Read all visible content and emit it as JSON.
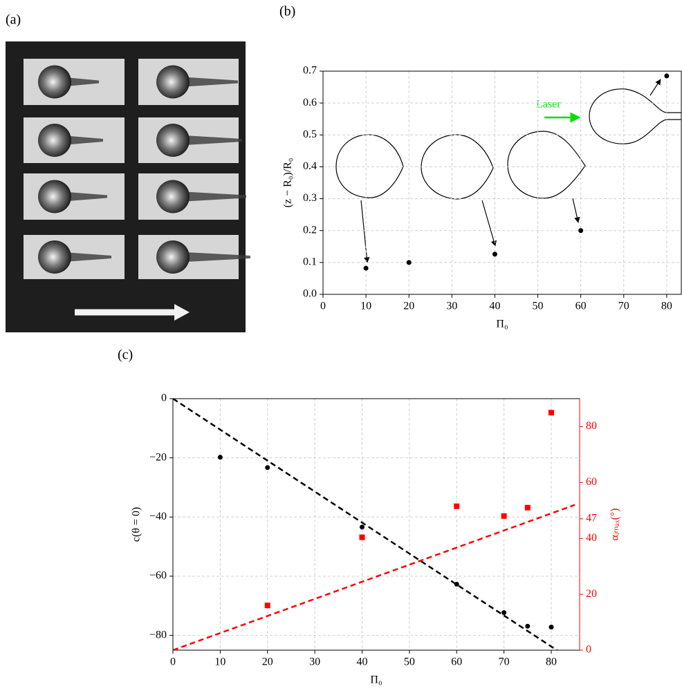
{
  "photo": {
    "label": "(a)"
  },
  "chart_data": [
    {
      "type": "scatter",
      "label": "(b)",
      "xlabel": "Π₀",
      "ylabel": "(z − R₀)/R₀",
      "annotation": "Laser",
      "annotation_color": "#00e000",
      "series": [
        {
          "color": "#000000",
          "marker": "circle",
          "x": [
            10,
            20,
            40,
            60,
            80
          ],
          "values": [
            0.082,
            0.1,
            0.126,
            0.2,
            0.685
          ]
        }
      ],
      "xlim": [
        0,
        83.4
      ],
      "xticks": [
        0,
        10,
        20,
        30,
        40,
        50,
        60,
        70,
        80
      ],
      "ylim": [
        0,
        0.7
      ],
      "yticks": [
        {
          "value": 0,
          "label": "0.0"
        },
        0.1,
        0.2,
        0.3,
        0.4,
        0.5,
        0.6,
        0.7
      ],
      "grid": true
    },
    {
      "type": "scatter",
      "label": "(c)",
      "xlabel": "Π₀",
      "ylabel": "c(θ = 0)",
      "y2label": "αᵢₘₐₓ(°)",
      "y2_color": "#ff0000",
      "series": [
        {
          "color": "#000000",
          "marker": "circle",
          "x": [
            10,
            20,
            40,
            60,
            70,
            75,
            80
          ],
          "values": [
            -19.8,
            -23.3,
            -43.4,
            -62.7,
            -72.3,
            -76.9,
            -77.2
          ]
        },
        {
          "color": "#ff0000",
          "marker": "square",
          "axis": "y2",
          "x": [
            20,
            40,
            60,
            70,
            75,
            80
          ],
          "values": [
            16,
            40.4,
            51.5,
            48,
            51,
            85
          ]
        },
        {
          "color": "#000000",
          "line": "dashed",
          "x": [
            0,
            85
          ],
          "values": [
            0,
            -89
          ]
        },
        {
          "color": "#ff0000",
          "line": "dashed",
          "axis": "y2",
          "x": [
            0,
            85
          ],
          "values": [
            0,
            52
          ]
        }
      ],
      "xlim": [
        0,
        86
      ],
      "xticks": [
        0,
        10,
        20,
        30,
        40,
        50,
        60,
        70,
        80
      ],
      "ylim": [
        -85,
        0
      ],
      "yticks": [
        0,
        {
          "value": -20,
          "label": "−20"
        },
        {
          "value": -40,
          "label": "−40"
        },
        {
          "value": -60,
          "label": "−60"
        },
        {
          "value": -80,
          "label": "−80"
        }
      ],
      "y2lim": [
        0,
        90
      ],
      "y2ticks": [
        0,
        20,
        40,
        47,
        60,
        80
      ],
      "grid": true
    }
  ]
}
